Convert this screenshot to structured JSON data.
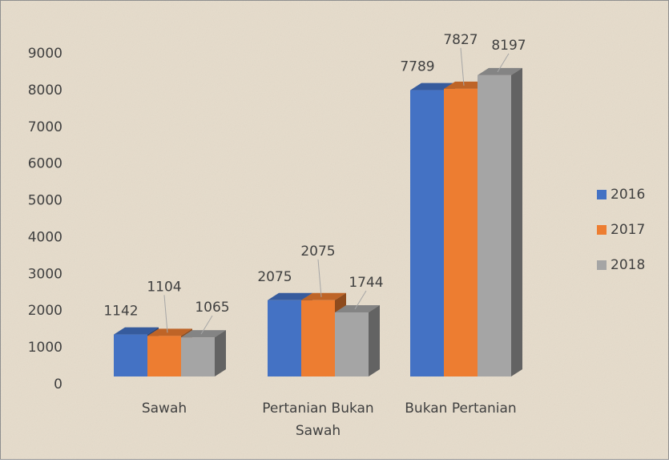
{
  "chart_data": {
    "type": "bar3d",
    "categories": [
      "Sawah",
      "Pertanian Bukan Sawah",
      "Bukan Pertanian"
    ],
    "series": [
      {
        "name": "2016",
        "color": "#4472c4",
        "values": [
          1142,
          2075,
          7789
        ]
      },
      {
        "name": "2017",
        "color": "#ed7d31",
        "values": [
          1104,
          2075,
          7827
        ]
      },
      {
        "name": "2018",
        "color": "#a5a5a5",
        "values": [
          1065,
          1744,
          8197
        ]
      }
    ],
    "ylim": [
      0,
      9000
    ],
    "yticks": [
      0,
      1000,
      2000,
      3000,
      4000,
      5000,
      6000,
      7000,
      8000,
      9000
    ],
    "legend": "right"
  }
}
